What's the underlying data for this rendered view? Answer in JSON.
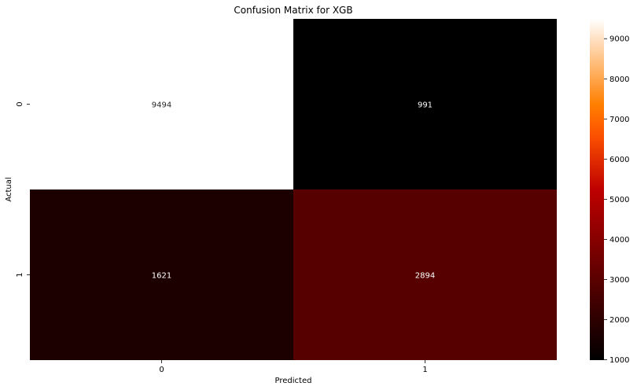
{
  "chart_data": {
    "type": "heatmap",
    "title": "Confusion Matrix for XGB",
    "xlabel": "Predicted",
    "ylabel": "Actual",
    "x_categories": [
      "0",
      "1"
    ],
    "y_categories": [
      "0",
      "1"
    ],
    "values": [
      [
        9494,
        991
      ],
      [
        1621,
        2894
      ]
    ],
    "colormap": "gist_heat",
    "colorbar": {
      "min": 991,
      "max": 9494,
      "ticks": [
        1000,
        2000,
        3000,
        4000,
        5000,
        6000,
        7000,
        8000,
        9000
      ],
      "tick_labels": [
        "1000",
        "2000",
        "3000",
        "4000",
        "5000",
        "6000",
        "7000",
        "8000",
        "9000"
      ]
    }
  }
}
